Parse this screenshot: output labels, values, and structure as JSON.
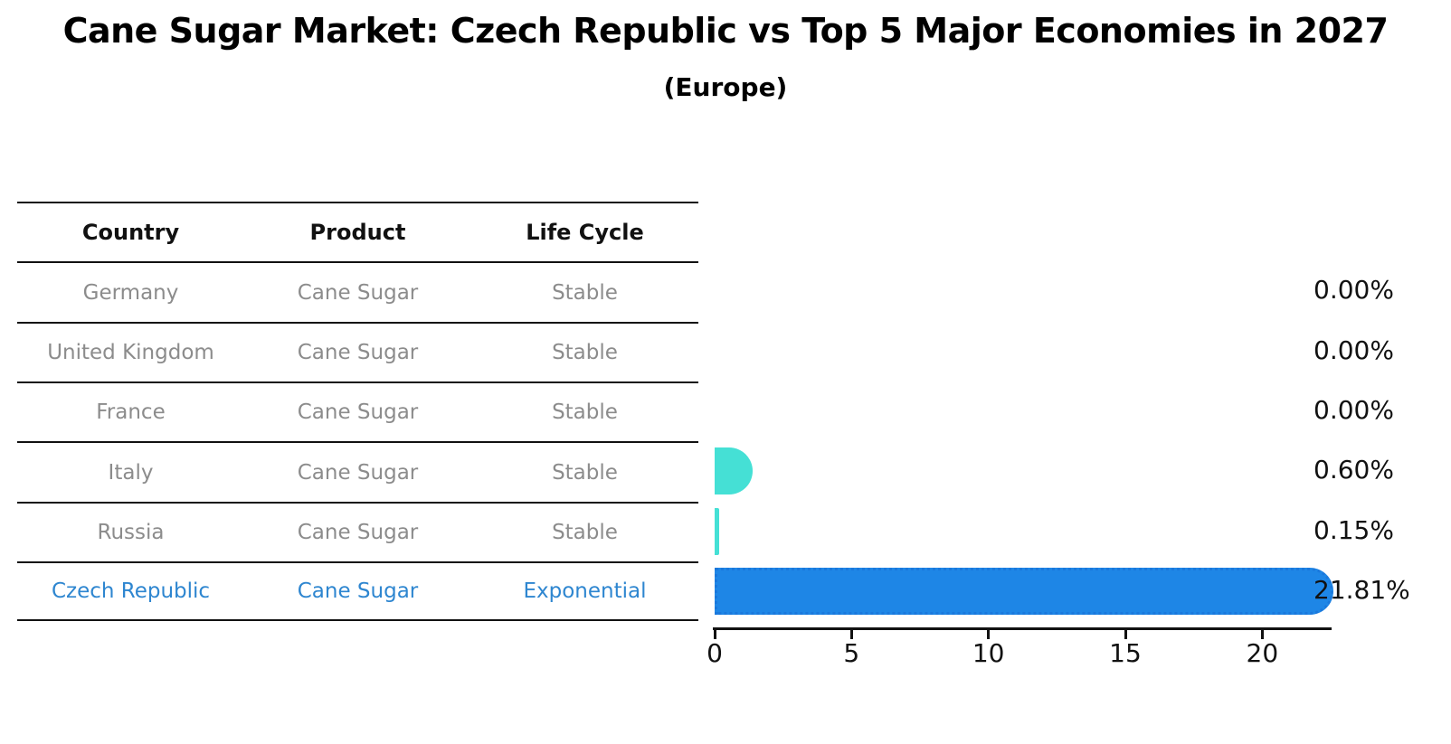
{
  "title": "Cane Sugar Market: Czech Republic vs Top 5 Major Economies in 2027",
  "subtitle": "(Europe)",
  "table": {
    "columns": [
      "Country",
      "Product",
      "Life Cycle"
    ],
    "rows": [
      {
        "country": "Germany",
        "product": "Cane Sugar",
        "life_cycle": "Stable",
        "highlight": false
      },
      {
        "country": "United Kingdom",
        "product": "Cane Sugar",
        "life_cycle": "Stable",
        "highlight": false
      },
      {
        "country": "France",
        "product": "Cane Sugar",
        "life_cycle": "Stable",
        "highlight": false
      },
      {
        "country": "Italy",
        "product": "Cane Sugar",
        "life_cycle": "Stable",
        "highlight": false
      },
      {
        "country": "Russia",
        "product": "Cane Sugar",
        "life_cycle": "Stable",
        "highlight": false
      },
      {
        "country": "Czech Republic",
        "product": "Cane Sugar",
        "life_cycle": "Exponential",
        "highlight": true
      }
    ]
  },
  "chart_data": {
    "type": "bar",
    "orientation": "horizontal",
    "title": "Cane Sugar Market: Czech Republic vs Top 5 Major Economies in 2027",
    "subtitle": "(Europe)",
    "categories": [
      "Germany",
      "United Kingdom",
      "France",
      "Italy",
      "Russia",
      "Czech Republic"
    ],
    "values": [
      0.0,
      0.0,
      0.0,
      0.6,
      0.15,
      21.81
    ],
    "value_labels": [
      "0.00%",
      "0.00%",
      "0.00%",
      "0.60%",
      "0.15%",
      "21.81%"
    ],
    "xlabel": "",
    "ylabel": "",
    "xlim": [
      0,
      22.5
    ],
    "xticks": [
      0,
      5,
      10,
      15,
      20
    ],
    "xtick_labels": [
      "0",
      "5",
      "10",
      "15",
      "20"
    ],
    "grid": false,
    "legend": false,
    "bar_colors": [
      "#45e0d5",
      "#45e0d5",
      "#45e0d5",
      "#45e0d5",
      "#45e0d5",
      "#1e86e6"
    ],
    "highlight_index": 5
  },
  "colors": {
    "teal_bar": "#45e0d5",
    "blue_bar": "#1e86e6",
    "blue_bar_edge": "#1a78dc",
    "highlight_text": "#2e86d0",
    "muted_text": "#8c8c8c",
    "axis": "#111111"
  }
}
